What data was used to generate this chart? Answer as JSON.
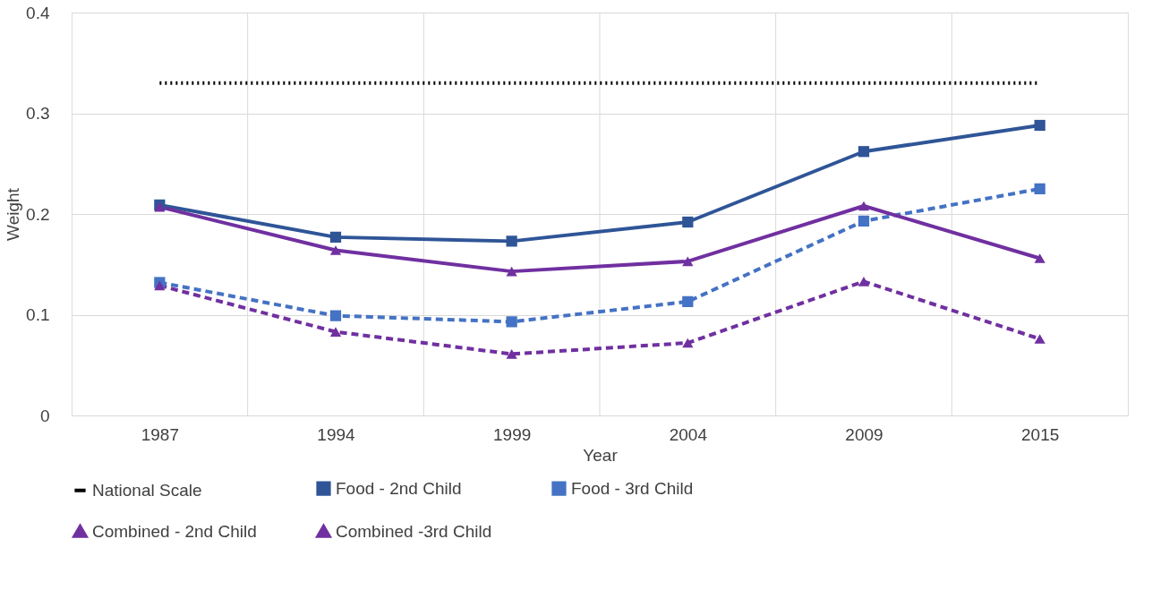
{
  "chart_data": {
    "type": "line",
    "xlabel": "Year",
    "ylabel": "Weight",
    "categories": [
      "1987",
      "1994",
      "1999",
      "2004",
      "2009",
      "2015"
    ],
    "ylim": [
      0,
      0.4
    ],
    "yticks": [
      0,
      0.1,
      0.2,
      0.3,
      0.4
    ],
    "grid": true,
    "legend": "bottom",
    "series": [
      {
        "name": "National Scale",
        "color": "#000000",
        "line_style": "dotted",
        "marker": "none",
        "values": [
          0.33,
          0.33,
          0.33,
          0.33,
          0.33,
          0.33
        ]
      },
      {
        "name": "Food - 2nd Child",
        "color": "#2f5597",
        "line_style": "solid",
        "marker": "square",
        "values": [
          0.209,
          0.177,
          0.173,
          0.192,
          0.262,
          0.288
        ]
      },
      {
        "name": "Food - 3rd Child",
        "color": "#4472c4",
        "line_style": "dashed",
        "marker": "square",
        "values": [
          0.132,
          0.099,
          0.093,
          0.113,
          0.193,
          0.225
        ]
      },
      {
        "name": "Combined - 2nd Child",
        "color": "#7030a0",
        "line_style": "solid",
        "marker": "triangle",
        "values": [
          0.207,
          0.164,
          0.143,
          0.153,
          0.208,
          0.156
        ]
      },
      {
        "name": "Combined -3rd Child",
        "color": "#7030a0",
        "line_style": "dashed",
        "marker": "triangle",
        "values": [
          0.129,
          0.083,
          0.061,
          0.072,
          0.133,
          0.076
        ]
      }
    ]
  }
}
